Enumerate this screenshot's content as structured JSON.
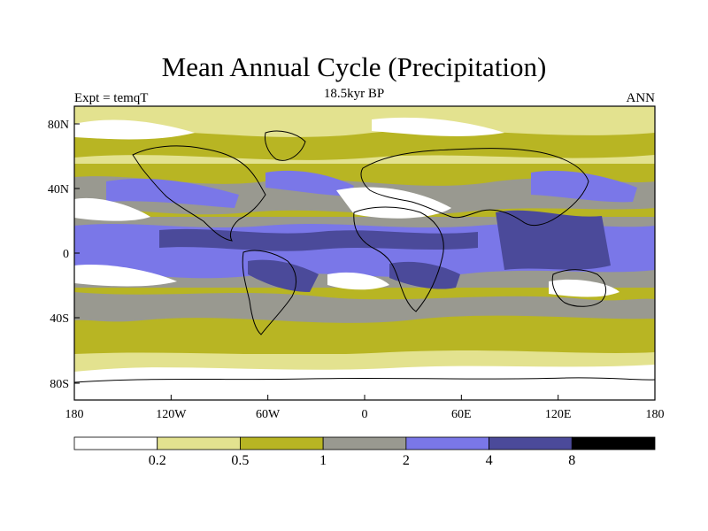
{
  "title": "Mean Annual Cycle (Precipitation)",
  "subtitle": "18.5kyr BP",
  "left_label": "Expt = temqT",
  "right_label": "ANN",
  "lat_ticks": [
    "80N",
    "40N",
    "0",
    "40S",
    "80S"
  ],
  "lon_ticks": [
    "180",
    "120W",
    "60W",
    "0",
    "60E",
    "120E",
    "180"
  ],
  "colorbar": {
    "colors": [
      "#ffffff",
      "#e3e28f",
      "#b8b523",
      "#999990",
      "#7a77e8",
      "#4b4a9a",
      "#000000"
    ],
    "labels": [
      "0.2",
      "0.5",
      "1",
      "2",
      "4",
      "8"
    ]
  }
}
